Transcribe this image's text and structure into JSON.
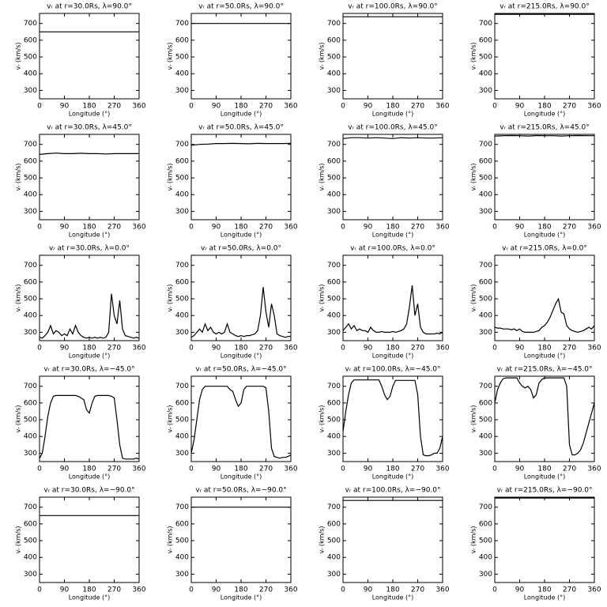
{
  "chart_data": [
    {
      "type": "line",
      "title": "vᵣ at r=30.0Rs, λ=90.0°",
      "xlabel": "Longitude (°)",
      "ylabel": "vᵣ (km/s)",
      "x": [
        0,
        360
      ],
      "values": [
        650,
        650
      ],
      "color": "#000000",
      "xlim": [
        0,
        360
      ],
      "ylim": [
        250,
        760
      ],
      "xticks": [
        0,
        90,
        180,
        270,
        360
      ],
      "yticks": [
        300,
        400,
        500,
        600,
        700
      ]
    },
    {
      "type": "line",
      "title": "vᵣ at r=50.0Rs, λ=90.0°",
      "xlabel": "Longitude (°)",
      "ylabel": "vᵣ (km/s)",
      "x": [
        0,
        360
      ],
      "values": [
        700,
        700
      ],
      "color": "#000000",
      "xlim": [
        0,
        360
      ],
      "ylim": [
        250,
        760
      ],
      "xticks": [
        0,
        90,
        180,
        270,
        360
      ],
      "yticks": [
        300,
        400,
        500,
        600,
        700
      ]
    },
    {
      "type": "line",
      "title": "vᵣ at r=100.0Rs, λ=90.0°",
      "xlabel": "Longitude (°)",
      "ylabel": "vᵣ (km/s)",
      "x": [
        0,
        360
      ],
      "values": [
        740,
        740
      ],
      "color": "#000000",
      "xlim": [
        0,
        360
      ],
      "ylim": [
        250,
        760
      ],
      "xticks": [
        0,
        90,
        180,
        270,
        360
      ],
      "yticks": [
        300,
        400,
        500,
        600,
        700
      ]
    },
    {
      "type": "line",
      "title": "vᵣ at r=215.0Rs, λ=90.0°",
      "xlabel": "Longitude (°)",
      "ylabel": "vᵣ (km/s)",
      "x": [
        0,
        360
      ],
      "values": [
        755,
        755
      ],
      "color": "#000000",
      "xlim": [
        0,
        360
      ],
      "ylim": [
        250,
        760
      ],
      "xticks": [
        0,
        90,
        180,
        270,
        360
      ],
      "yticks": [
        300,
        400,
        500,
        600,
        700
      ]
    },
    {
      "type": "line",
      "title": "vᵣ at r=30.0Rs, λ=45.0°",
      "xlabel": "Longitude (°)",
      "ylabel": "vᵣ (km/s)",
      "x": [
        0,
        30,
        60,
        90,
        120,
        150,
        180,
        210,
        240,
        270,
        300,
        330,
        360
      ],
      "values": [
        640,
        645,
        648,
        645,
        645,
        647,
        645,
        645,
        643,
        645,
        645,
        645,
        645
      ],
      "color": "#000000",
      "xlim": [
        0,
        360
      ],
      "ylim": [
        250,
        760
      ],
      "xticks": [
        0,
        90,
        180,
        270,
        360
      ],
      "yticks": [
        300,
        400,
        500,
        600,
        700
      ]
    },
    {
      "type": "line",
      "title": "vᵣ at r=50.0Rs, λ=45.0°",
      "xlabel": "Longitude (°)",
      "ylabel": "vᵣ (km/s)",
      "x": [
        0,
        30,
        60,
        90,
        120,
        150,
        180,
        210,
        240,
        270,
        300,
        330,
        360
      ],
      "values": [
        695,
        700,
        702,
        705,
        705,
        706,
        705,
        704,
        706,
        705,
        705,
        705,
        706
      ],
      "color": "#000000",
      "xlim": [
        0,
        360
      ],
      "ylim": [
        250,
        760
      ],
      "xticks": [
        0,
        90,
        180,
        270,
        360
      ],
      "yticks": [
        300,
        400,
        500,
        600,
        700
      ]
    },
    {
      "type": "line",
      "title": "vᵣ at r=100.0Rs, λ=45.0°",
      "xlabel": "Longitude (°)",
      "ylabel": "vᵣ (km/s)",
      "x": [
        0,
        30,
        60,
        90,
        120,
        150,
        180,
        210,
        240,
        270,
        300,
        330,
        360
      ],
      "values": [
        735,
        740,
        740,
        738,
        740,
        738,
        735,
        740,
        738,
        740,
        738,
        738,
        740
      ],
      "color": "#000000",
      "xlim": [
        0,
        360
      ],
      "ylim": [
        250,
        760
      ],
      "xticks": [
        0,
        90,
        180,
        270,
        360
      ],
      "yticks": [
        300,
        400,
        500,
        600,
        700
      ]
    },
    {
      "type": "line",
      "title": "vᵣ at r=215.0Rs, λ=45.0°",
      "xlabel": "Longitude (°)",
      "ylabel": "vᵣ (km/s)",
      "x": [
        0,
        30,
        60,
        90,
        120,
        150,
        180,
        210,
        240,
        270,
        300,
        330,
        360
      ],
      "values": [
        750,
        752,
        753,
        752,
        750,
        753,
        752,
        752,
        750,
        752,
        753,
        752,
        752
      ],
      "color": "#000000",
      "xlim": [
        0,
        360
      ],
      "ylim": [
        250,
        760
      ],
      "xticks": [
        0,
        90,
        180,
        270,
        360
      ],
      "yticks": [
        300,
        400,
        500,
        600,
        700
      ]
    },
    {
      "type": "line",
      "title": "vᵣ at r=30.0Rs, λ=0.0°",
      "xlabel": "Longitude (°)",
      "ylabel": "vᵣ (km/s)",
      "x": [
        0,
        10,
        20,
        30,
        40,
        50,
        60,
        70,
        80,
        90,
        100,
        110,
        120,
        130,
        140,
        150,
        160,
        170,
        180,
        190,
        200,
        210,
        220,
        230,
        240,
        250,
        260,
        270,
        280,
        290,
        300,
        310,
        320,
        330,
        340,
        350,
        360
      ],
      "values": [
        270,
        265,
        280,
        300,
        340,
        290,
        310,
        300,
        280,
        290,
        280,
        320,
        290,
        340,
        300,
        280,
        270,
        265,
        270,
        265,
        270,
        265,
        270,
        265,
        270,
        300,
        530,
        400,
        350,
        490,
        320,
        280,
        275,
        270,
        265,
        270,
        265
      ],
      "color": "#000000",
      "xlim": [
        0,
        360
      ],
      "ylim": [
        250,
        760
      ],
      "xticks": [
        0,
        90,
        180,
        270,
        360
      ],
      "yticks": [
        300,
        400,
        500,
        600,
        700
      ]
    },
    {
      "type": "line",
      "title": "vᵣ at r=50.0Rs, λ=0.0°",
      "xlabel": "Longitude (°)",
      "ylabel": "vᵣ (km/s)",
      "x": [
        0,
        10,
        20,
        30,
        40,
        50,
        60,
        70,
        80,
        90,
        100,
        110,
        120,
        130,
        140,
        150,
        160,
        170,
        180,
        190,
        200,
        210,
        220,
        230,
        240,
        250,
        260,
        270,
        280,
        290,
        300,
        310,
        320,
        330,
        340,
        350,
        360
      ],
      "values": [
        270,
        280,
        300,
        320,
        300,
        350,
        310,
        330,
        300,
        290,
        300,
        290,
        300,
        350,
        300,
        290,
        280,
        275,
        280,
        275,
        280,
        280,
        285,
        290,
        310,
        400,
        570,
        420,
        330,
        470,
        400,
        290,
        280,
        275,
        270,
        275,
        275
      ],
      "color": "#000000",
      "xlim": [
        0,
        360
      ],
      "ylim": [
        250,
        760
      ],
      "xticks": [
        0,
        90,
        180,
        270,
        360
      ],
      "yticks": [
        300,
        400,
        500,
        600,
        700
      ]
    },
    {
      "type": "line",
      "title": "vᵣ at r=100.0Rs, λ=0.0°",
      "xlabel": "Longitude (°)",
      "ylabel": "vᵣ (km/s)",
      "x": [
        0,
        10,
        20,
        30,
        40,
        50,
        60,
        70,
        80,
        90,
        100,
        110,
        120,
        130,
        140,
        150,
        160,
        170,
        180,
        190,
        200,
        210,
        220,
        230,
        240,
        250,
        260,
        270,
        280,
        290,
        300,
        310,
        320,
        330,
        340,
        350,
        360
      ],
      "values": [
        310,
        330,
        350,
        320,
        340,
        310,
        320,
        310,
        310,
        300,
        330,
        310,
        300,
        300,
        305,
        300,
        300,
        300,
        305,
        300,
        305,
        310,
        320,
        350,
        450,
        580,
        400,
        470,
        330,
        300,
        290,
        290,
        290,
        290,
        295,
        290,
        300
      ],
      "color": "#000000",
      "xlim": [
        0,
        360
      ],
      "ylim": [
        250,
        760
      ],
      "xticks": [
        0,
        90,
        180,
        270,
        360
      ],
      "yticks": [
        300,
        400,
        500,
        600,
        700
      ]
    },
    {
      "type": "line",
      "title": "vᵣ at r=215.0Rs, λ=0.0°",
      "xlabel": "Longitude (°)",
      "ylabel": "vᵣ (km/s)",
      "x": [
        0,
        10,
        20,
        30,
        40,
        50,
        60,
        70,
        80,
        90,
        100,
        110,
        120,
        130,
        140,
        150,
        160,
        170,
        180,
        190,
        200,
        210,
        220,
        230,
        240,
        250,
        260,
        270,
        280,
        290,
        300,
        310,
        320,
        330,
        340,
        350,
        360
      ],
      "values": [
        330,
        325,
        325,
        320,
        320,
        320,
        315,
        320,
        310,
        320,
        305,
        300,
        300,
        300,
        300,
        305,
        310,
        330,
        340,
        360,
        390,
        430,
        470,
        500,
        420,
        410,
        340,
        320,
        310,
        305,
        300,
        305,
        310,
        320,
        330,
        320,
        340
      ],
      "color": "#000000",
      "xlim": [
        0,
        360
      ],
      "ylim": [
        250,
        760
      ],
      "xticks": [
        0,
        90,
        180,
        270,
        360
      ],
      "yticks": [
        300,
        400,
        500,
        600,
        700
      ]
    },
    {
      "type": "line",
      "title": "vᵣ at r=30.0Rs, λ=−45.0°",
      "xlabel": "Longitude (°)",
      "ylabel": "vᵣ (km/s)",
      "x": [
        0,
        10,
        20,
        30,
        40,
        50,
        60,
        70,
        80,
        90,
        100,
        110,
        120,
        130,
        140,
        150,
        160,
        170,
        180,
        190,
        200,
        210,
        220,
        230,
        240,
        250,
        260,
        270,
        280,
        290,
        300,
        310,
        320,
        330,
        340,
        350,
        360
      ],
      "values": [
        270,
        300,
        400,
        520,
        600,
        640,
        645,
        645,
        645,
        645,
        645,
        645,
        645,
        645,
        640,
        630,
        620,
        560,
        540,
        600,
        640,
        645,
        645,
        645,
        645,
        645,
        640,
        630,
        500,
        350,
        270,
        265,
        265,
        265,
        265,
        270,
        265
      ],
      "color": "#000000",
      "xlim": [
        0,
        360
      ],
      "ylim": [
        250,
        760
      ],
      "xticks": [
        0,
        90,
        180,
        270,
        360
      ],
      "yticks": [
        300,
        400,
        500,
        600,
        700
      ]
    },
    {
      "type": "line",
      "title": "vᵣ at r=50.0Rs, λ=−45.0°",
      "xlabel": "Longitude (°)",
      "ylabel": "vᵣ (km/s)",
      "x": [
        0,
        10,
        20,
        30,
        40,
        50,
        60,
        70,
        80,
        90,
        100,
        110,
        120,
        130,
        140,
        150,
        160,
        170,
        180,
        190,
        200,
        210,
        220,
        230,
        240,
        250,
        260,
        270,
        280,
        290,
        300,
        310,
        320,
        330,
        340,
        350,
        360
      ],
      "values": [
        300,
        380,
        500,
        620,
        680,
        700,
        700,
        700,
        700,
        700,
        700,
        700,
        700,
        700,
        680,
        670,
        620,
        580,
        600,
        680,
        700,
        700,
        700,
        700,
        700,
        700,
        700,
        690,
        550,
        330,
        280,
        275,
        270,
        275,
        275,
        280,
        290
      ],
      "color": "#000000",
      "xlim": [
        0,
        360
      ],
      "ylim": [
        250,
        760
      ],
      "xticks": [
        0,
        90,
        180,
        270,
        360
      ],
      "yticks": [
        300,
        400,
        500,
        600,
        700
      ]
    },
    {
      "type": "line",
      "title": "vᵣ at r=100.0Rs, λ=−45.0°",
      "xlabel": "Longitude (°)",
      "ylabel": "vᵣ (km/s)",
      "x": [
        0,
        10,
        20,
        30,
        40,
        50,
        60,
        70,
        80,
        90,
        100,
        110,
        120,
        130,
        140,
        150,
        160,
        170,
        180,
        190,
        200,
        210,
        220,
        230,
        240,
        250,
        260,
        270,
        280,
        290,
        300,
        310,
        320,
        330,
        340,
        350,
        360
      ],
      "values": [
        430,
        550,
        650,
        720,
        738,
        738,
        738,
        738,
        738,
        738,
        738,
        738,
        738,
        738,
        700,
        650,
        620,
        640,
        700,
        735,
        735,
        735,
        735,
        735,
        735,
        735,
        735,
        650,
        400,
        290,
        285,
        285,
        290,
        300,
        300,
        330,
        400
      ],
      "color": "#000000",
      "xlim": [
        0,
        360
      ],
      "ylim": [
        250,
        760
      ],
      "xticks": [
        0,
        90,
        180,
        270,
        360
      ],
      "yticks": [
        300,
        400,
        500,
        600,
        700
      ]
    },
    {
      "type": "line",
      "title": "vᵣ at r=215.0Rs, λ=−45.0°",
      "xlabel": "Longitude (°)",
      "ylabel": "vᵣ (km/s)",
      "x": [
        0,
        10,
        20,
        30,
        40,
        50,
        60,
        70,
        80,
        90,
        100,
        110,
        120,
        130,
        140,
        150,
        160,
        170,
        180,
        190,
        200,
        210,
        220,
        230,
        240,
        250,
        260,
        270,
        280,
        290,
        300,
        310,
        320,
        330,
        340,
        350,
        360
      ],
      "values": [
        600,
        680,
        720,
        745,
        750,
        750,
        750,
        750,
        750,
        720,
        700,
        690,
        700,
        680,
        630,
        650,
        720,
        740,
        750,
        750,
        750,
        750,
        750,
        750,
        750,
        750,
        700,
        350,
        290,
        290,
        300,
        320,
        360,
        420,
        480,
        540,
        600
      ],
      "color": "#000000",
      "xlim": [
        0,
        360
      ],
      "ylim": [
        250,
        760
      ],
      "xticks": [
        0,
        90,
        180,
        270,
        360
      ],
      "yticks": [
        300,
        400,
        500,
        600,
        700
      ]
    },
    {
      "type": "line",
      "title": "vᵣ at r=30.0Rs, λ=−90.0°",
      "xlabel": "Longitude (°)",
      "ylabel": "vᵣ (km/s)",
      "x": [
        0,
        360
      ],
      "values": [
        650,
        650
      ],
      "color": "#000000",
      "xlim": [
        0,
        360
      ],
      "ylim": [
        250,
        760
      ],
      "xticks": [
        0,
        90,
        180,
        270,
        360
      ],
      "yticks": [
        300,
        400,
        500,
        600,
        700
      ]
    },
    {
      "type": "line",
      "title": "vᵣ at r=50.0Rs, λ=−90.0°",
      "xlabel": "Longitude (°)",
      "ylabel": "vᵣ (km/s)",
      "x": [
        0,
        360
      ],
      "values": [
        700,
        700
      ],
      "color": "#000000",
      "xlim": [
        0,
        360
      ],
      "ylim": [
        250,
        760
      ],
      "xticks": [
        0,
        90,
        180,
        270,
        360
      ],
      "yticks": [
        300,
        400,
        500,
        600,
        700
      ]
    },
    {
      "type": "line",
      "title": "vᵣ at r=100.0Rs, λ=−90.0°",
      "xlabel": "Longitude (°)",
      "ylabel": "vᵣ (km/s)",
      "x": [
        0,
        360
      ],
      "values": [
        740,
        740
      ],
      "color": "#000000",
      "xlim": [
        0,
        360
      ],
      "ylim": [
        250,
        760
      ],
      "xticks": [
        0,
        90,
        180,
        270,
        360
      ],
      "yticks": [
        300,
        400,
        500,
        600,
        700
      ]
    },
    {
      "type": "line",
      "title": "vᵣ at r=215.0Rs, λ=−90.0°",
      "xlabel": "Longitude (°)",
      "ylabel": "vᵣ (km/s)",
      "x": [
        0,
        360
      ],
      "values": [
        755,
        755
      ],
      "color": "#000000",
      "xlim": [
        0,
        360
      ],
      "ylim": [
        250,
        760
      ],
      "xticks": [
        0,
        90,
        180,
        270,
        360
      ],
      "yticks": [
        300,
        400,
        500,
        600,
        700
      ]
    }
  ]
}
